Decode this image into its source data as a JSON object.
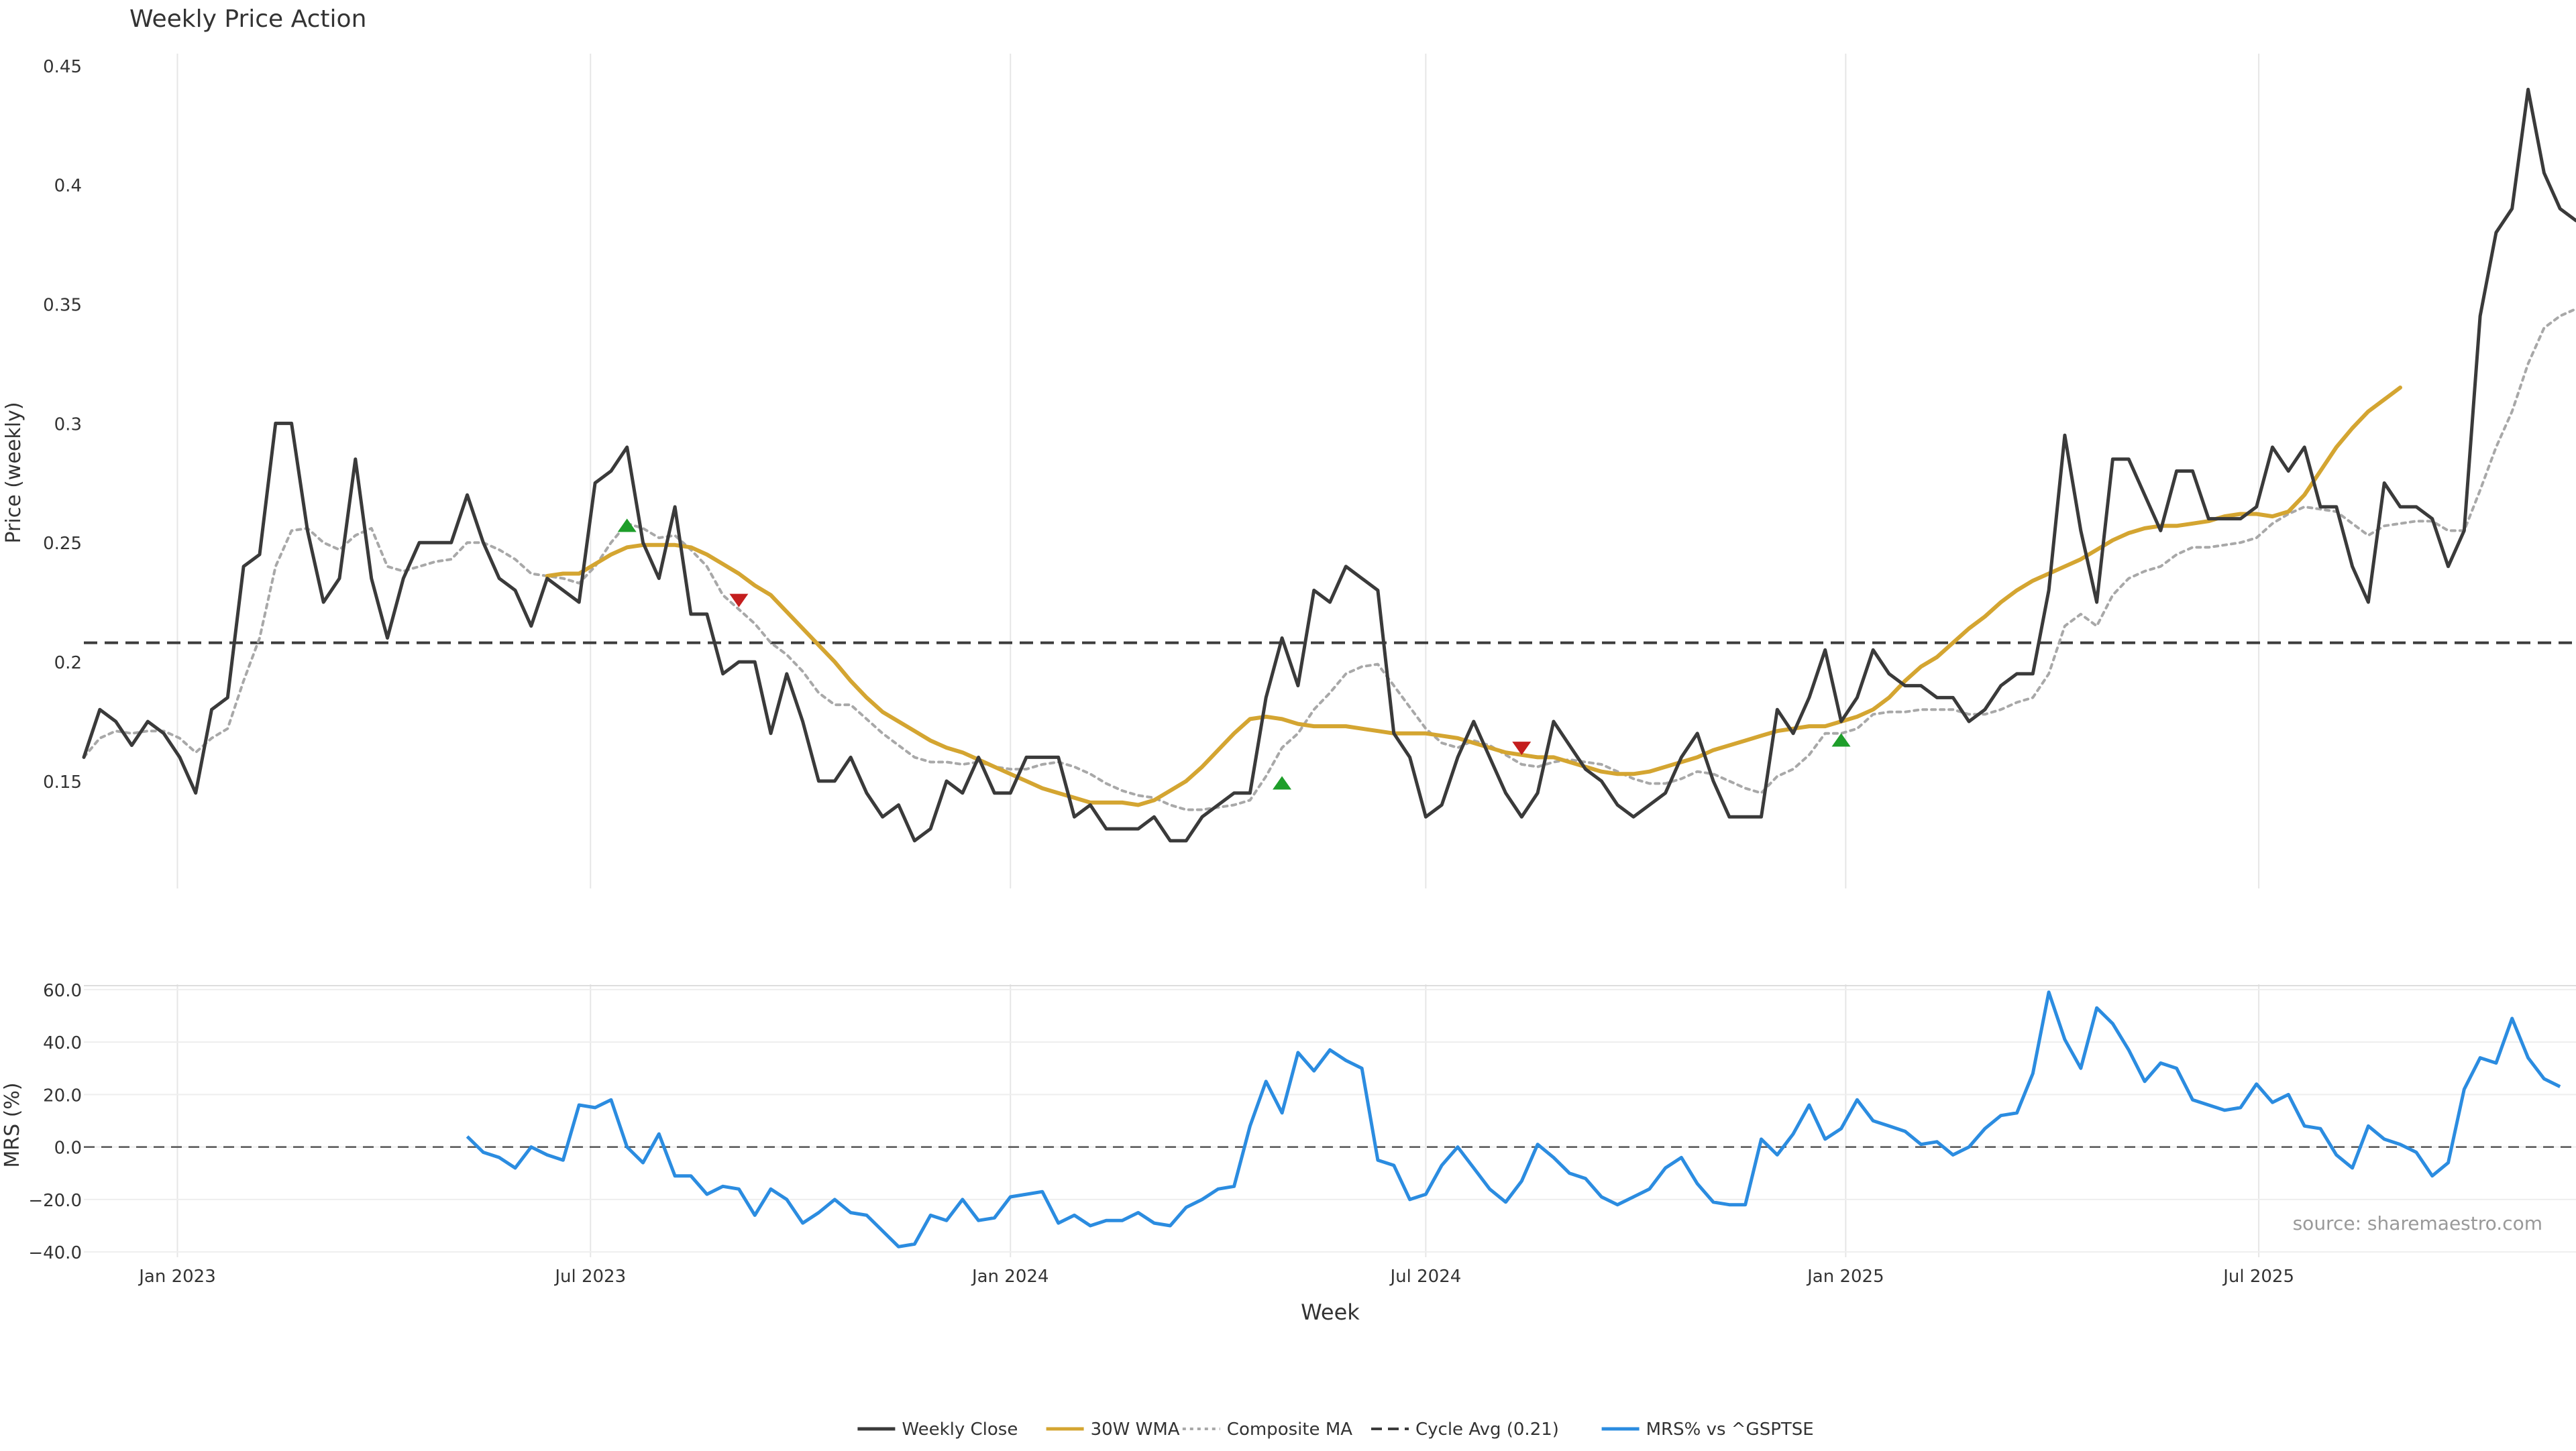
{
  "chart_data": [
    {
      "type": "line",
      "title": "Weekly Price Action",
      "ylabel": "Price (weekly)",
      "ylim": [
        0.105,
        0.455
      ],
      "yticks": [
        0.15,
        0.2,
        0.25,
        0.3,
        0.35,
        0.4,
        0.45
      ],
      "ytick_labels": [
        "0.15",
        "0.2",
        "0.25",
        "0.3",
        "0.35",
        "0.4",
        "0.45"
      ],
      "grid": "vertical",
      "reference_line": {
        "value": 0.208,
        "style": "dashed",
        "color": "#3c3c3c",
        "label": "Cycle Avg (0.21)"
      },
      "series": [
        {
          "name": "Weekly Close",
          "color": "#3a3a3a",
          "values": [
            0.16,
            0.18,
            0.175,
            0.165,
            0.175,
            0.17,
            0.16,
            0.145,
            0.18,
            0.185,
            0.24,
            0.245,
            0.3,
            0.3,
            0.255,
            0.225,
            0.235,
            0.285,
            0.235,
            0.21,
            0.235,
            0.25,
            0.25,
            0.25,
            0.27,
            0.25,
            0.235,
            0.23,
            0.215,
            0.235,
            0.23,
            0.225,
            0.275,
            0.28,
            0.29,
            0.25,
            0.235,
            0.265,
            0.22,
            0.22,
            0.195,
            0.2,
            0.2,
            0.17,
            0.195,
            0.175,
            0.15,
            0.15,
            0.16,
            0.145,
            0.135,
            0.14,
            0.125,
            0.13,
            0.15,
            0.145,
            0.16,
            0.145,
            0.145,
            0.16,
            0.16,
            0.16,
            0.135,
            0.14,
            0.13,
            0.13,
            0.13,
            0.135,
            0.125,
            0.125,
            0.135,
            0.14,
            0.145,
            0.145,
            0.185,
            0.21,
            0.19,
            0.23,
            0.225,
            0.24,
            0.235,
            0.23,
            0.17,
            0.16,
            0.135,
            0.14,
            0.16,
            0.175,
            0.16,
            0.145,
            0.135,
            0.145,
            0.175,
            0.165,
            0.155,
            0.15,
            0.14,
            0.135,
            0.14,
            0.145,
            0.16,
            0.17,
            0.15,
            0.135,
            0.135,
            0.135,
            0.18,
            0.17,
            0.185,
            0.205,
            0.175,
            0.185,
            0.205,
            0.195,
            0.19,
            0.19,
            0.185,
            0.185,
            0.175,
            0.18,
            0.19,
            0.195,
            0.195,
            0.23,
            0.295,
            0.255,
            0.225,
            0.285,
            0.285,
            0.27,
            0.255,
            0.28,
            0.28,
            0.26,
            0.26,
            0.26,
            0.265,
            0.29,
            0.28,
            0.29,
            0.265,
            0.265,
            0.24,
            0.225,
            0.275,
            0.265,
            0.265,
            0.26,
            0.24,
            0.255,
            0.345,
            0.38,
            0.39,
            0.44,
            0.405,
            0.39,
            0.385
          ]
        },
        {
          "name": "30W WMA",
          "color": "#d4a531",
          "start_index": 29,
          "values": [
            0.236,
            0.237,
            0.237,
            0.241,
            0.245,
            0.248,
            0.249,
            0.249,
            0.249,
            0.248,
            0.245,
            0.241,
            0.237,
            0.232,
            0.228,
            0.221,
            0.214,
            0.207,
            0.2,
            0.192,
            0.185,
            0.179,
            0.175,
            0.171,
            0.167,
            0.164,
            0.162,
            0.159,
            0.156,
            0.153,
            0.15,
            0.147,
            0.145,
            0.143,
            0.141,
            0.141,
            0.141,
            0.14,
            0.142,
            0.146,
            0.15,
            0.156,
            0.163,
            0.17,
            0.176,
            0.177,
            0.176,
            0.174,
            0.173,
            0.173,
            0.173,
            0.172,
            0.171,
            0.17,
            0.17,
            0.17,
            0.169,
            0.168,
            0.166,
            0.164,
            0.162,
            0.161,
            0.16,
            0.16,
            0.158,
            0.156,
            0.154,
            0.153,
            0.153,
            0.154,
            0.156,
            0.158,
            0.16,
            0.163,
            0.165,
            0.167,
            0.169,
            0.171,
            0.172,
            0.173,
            0.173,
            0.175,
            0.177,
            0.18,
            0.185,
            0.192,
            0.198,
            0.202,
            0.208,
            0.214,
            0.219,
            0.225,
            0.23,
            0.234,
            0.237,
            0.24,
            0.243,
            0.247,
            0.251,
            0.254,
            0.256,
            0.257,
            0.257,
            0.258,
            0.259,
            0.261,
            0.262,
            0.262,
            0.261,
            0.263,
            0.27,
            0.28,
            0.29,
            0.298,
            0.305,
            0.31,
            0.315
          ]
        },
        {
          "name": "Composite MA",
          "color": "#a8a8a8",
          "values": [
            0.16,
            0.168,
            0.171,
            0.17,
            0.171,
            0.171,
            0.168,
            0.162,
            0.168,
            0.172,
            0.192,
            0.21,
            0.24,
            0.255,
            0.256,
            0.25,
            0.247,
            0.253,
            0.256,
            0.24,
            0.238,
            0.24,
            0.242,
            0.243,
            0.25,
            0.25,
            0.247,
            0.243,
            0.237,
            0.236,
            0.235,
            0.233,
            0.24,
            0.25,
            0.258,
            0.256,
            0.252,
            0.253,
            0.247,
            0.24,
            0.228,
            0.222,
            0.216,
            0.208,
            0.203,
            0.196,
            0.187,
            0.182,
            0.182,
            0.176,
            0.17,
            0.165,
            0.16,
            0.158,
            0.158,
            0.157,
            0.158,
            0.156,
            0.155,
            0.155,
            0.157,
            0.158,
            0.156,
            0.153,
            0.149,
            0.146,
            0.144,
            0.143,
            0.14,
            0.138,
            0.138,
            0.139,
            0.14,
            0.142,
            0.152,
            0.164,
            0.17,
            0.18,
            0.187,
            0.195,
            0.198,
            0.199,
            0.19,
            0.181,
            0.172,
            0.166,
            0.164,
            0.167,
            0.165,
            0.161,
            0.157,
            0.156,
            0.158,
            0.159,
            0.158,
            0.157,
            0.154,
            0.151,
            0.149,
            0.149,
            0.151,
            0.154,
            0.153,
            0.15,
            0.147,
            0.145,
            0.152,
            0.155,
            0.161,
            0.17,
            0.17,
            0.172,
            0.178,
            0.179,
            0.179,
            0.18,
            0.18,
            0.18,
            0.178,
            0.178,
            0.18,
            0.183,
            0.185,
            0.195,
            0.215,
            0.22,
            0.215,
            0.228,
            0.235,
            0.238,
            0.24,
            0.245,
            0.248,
            0.248,
            0.249,
            0.25,
            0.252,
            0.258,
            0.262,
            0.265,
            0.264,
            0.263,
            0.258,
            0.253,
            0.257,
            0.258,
            0.259,
            0.259,
            0.255,
            0.255,
            0.272,
            0.29,
            0.305,
            0.325,
            0.34,
            0.345,
            0.348
          ]
        }
      ],
      "signals": [
        {
          "type": "buy",
          "index": 34,
          "value": 0.257
        },
        {
          "type": "sell",
          "index": 41,
          "value": 0.226
        },
        {
          "type": "buy",
          "index": 75,
          "value": 0.149
        },
        {
          "type": "sell",
          "index": 90,
          "value": 0.164
        },
        {
          "type": "buy",
          "index": 110,
          "value": 0.167
        }
      ]
    },
    {
      "type": "line",
      "ylabel": "MRS (%)",
      "ylim": [
        -42,
        62
      ],
      "yticks": [
        -40,
        -20,
        0,
        20,
        40,
        60
      ],
      "ytick_labels": [
        "−40.0",
        "−20.0",
        "0.0",
        "20.0",
        "40.0",
        "60.0"
      ],
      "reference_line": {
        "value": 0,
        "style": "dashed",
        "color": "#555555"
      },
      "xlabel": "Week",
      "x_start": "2022-11-21",
      "x_step_days": 7,
      "xticks": [
        {
          "date": "2023-01-01",
          "label": "Jan 2023"
        },
        {
          "date": "2023-07-01",
          "label": "Jul 2023"
        },
        {
          "date": "2024-01-01",
          "label": "Jan 2024"
        },
        {
          "date": "2024-07-01",
          "label": "Jul 2024"
        },
        {
          "date": "2025-01-01",
          "label": "Jan 2025"
        },
        {
          "date": "2025-07-01",
          "label": "Jul 2025"
        }
      ],
      "series": [
        {
          "name": "MRS% vs ^GSPTSE",
          "color": "#2b8ce0",
          "start_index": 24,
          "values": [
            4,
            -2,
            -4,
            -8,
            0,
            -3,
            -5,
            16,
            15,
            18,
            0,
            -6,
            5,
            -11,
            -11,
            -18,
            -15,
            -16,
            -26,
            -16,
            -20,
            -29,
            -25,
            -20,
            -25,
            -26,
            -32,
            -38,
            -37,
            -26,
            -28,
            -20,
            -28,
            -27,
            -19,
            -18,
            -17,
            -29,
            -26,
            -30,
            -28,
            -28,
            -25,
            -29,
            -30,
            -23,
            -20,
            -16,
            -15,
            8,
            25,
            13,
            36,
            29,
            37,
            33,
            30,
            -5,
            -7,
            -20,
            -18,
            -7,
            0,
            -8,
            -16,
            -21,
            -13,
            1,
            -4,
            -10,
            -12,
            -19,
            -22,
            -19,
            -16,
            -8,
            -4,
            -14,
            -21,
            -22,
            -22,
            3,
            -3,
            5,
            16,
            3,
            7,
            18,
            10,
            8,
            6,
            1,
            2,
            -3,
            0,
            7,
            12,
            13,
            28,
            59,
            41,
            30,
            53,
            47,
            37,
            25,
            32,
            30,
            18,
            16,
            14,
            15,
            24,
            17,
            20,
            8,
            7,
            -3,
            -8,
            8,
            3,
            1,
            -2,
            -11,
            -6,
            22,
            34,
            32,
            49,
            34,
            26,
            23
          ]
        }
      ],
      "annotation": "source: sharemaestro.com"
    }
  ],
  "legend": {
    "placement": "bottom-center",
    "entries": [
      {
        "label": "Weekly Close",
        "color": "#3a3a3a",
        "style": "solid"
      },
      {
        "label": "30W WMA",
        "color": "#d4a531",
        "style": "solid"
      },
      {
        "label": "Composite MA",
        "color": "#a8a8a8",
        "style": "dotted"
      },
      {
        "label": "Cycle Avg (0.21)",
        "color": "#3c3c3c",
        "style": "dashed"
      },
      {
        "label": "MRS% vs ^GSPTSE",
        "color": "#2b8ce0",
        "style": "solid"
      }
    ]
  },
  "colors": {
    "buy": "#1e9e2a",
    "sell": "#c41e1e",
    "grid": "#e6e6e6",
    "axis_text": "#333333"
  }
}
